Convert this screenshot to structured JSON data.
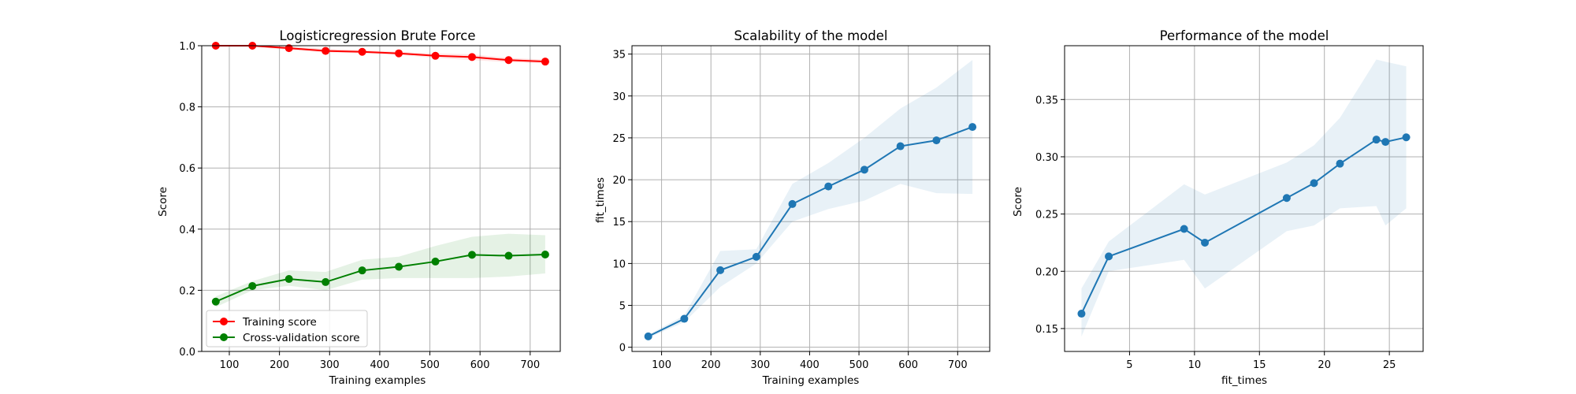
{
  "chart_data": [
    {
      "type": "line",
      "title": "Logisticregression Brute Force",
      "xlabel": "Training examples",
      "ylabel": "Score",
      "xlim": [
        45,
        760
      ],
      "ylim": [
        0.0,
        1.0
      ],
      "xticks": [
        100,
        200,
        300,
        400,
        500,
        600,
        700
      ],
      "yticks": [
        0.0,
        0.2,
        0.4,
        0.6,
        0.8,
        1.0
      ],
      "ytick_labels": [
        "0.0",
        "0.2",
        "0.4",
        "0.6",
        "0.8",
        "1.0"
      ],
      "grid": true,
      "legend": "lower-left",
      "x": [
        73,
        146,
        219,
        292,
        365,
        438,
        511,
        584,
        657,
        730
      ],
      "series": [
        {
          "name": "Training score",
          "color": "#ff0000",
          "values": [
            1.0,
            1.0,
            0.992,
            0.983,
            0.98,
            0.975,
            0.967,
            0.963,
            0.953,
            0.948
          ],
          "band_low": [
            0.998,
            0.997,
            0.986,
            0.978,
            0.975,
            0.97,
            0.96,
            0.953,
            0.946,
            0.942
          ],
          "band_high": [
            1.0,
            1.0,
            0.998,
            0.99,
            0.986,
            0.98,
            0.975,
            0.972,
            0.96,
            0.955
          ]
        },
        {
          "name": "Cross-validation score",
          "color": "#008000",
          "values": [
            0.163,
            0.214,
            0.237,
            0.227,
            0.265,
            0.277,
            0.294,
            0.316,
            0.313,
            0.317
          ],
          "band_low": [
            0.145,
            0.2,
            0.215,
            0.2,
            0.235,
            0.24,
            0.24,
            0.24,
            0.245,
            0.255
          ],
          "band_high": [
            0.18,
            0.23,
            0.265,
            0.26,
            0.3,
            0.31,
            0.345,
            0.375,
            0.385,
            0.38
          ]
        }
      ]
    },
    {
      "type": "line",
      "title": "Scalability of the model",
      "xlabel": "Training examples",
      "ylabel": "fit_times",
      "xlim": [
        40,
        765
      ],
      "ylim": [
        -0.5,
        36
      ],
      "xticks": [
        100,
        200,
        300,
        400,
        500,
        600,
        700
      ],
      "yticks": [
        0,
        5,
        10,
        15,
        20,
        25,
        30,
        35
      ],
      "grid": true,
      "x": [
        73,
        146,
        219,
        292,
        365,
        438,
        511,
        584,
        657,
        730
      ],
      "series": [
        {
          "name": "",
          "color": "#1f77b4",
          "values": [
            1.3,
            3.4,
            9.2,
            10.8,
            17.1,
            19.2,
            21.2,
            24.0,
            24.7,
            26.3
          ],
          "band_low": [
            1.1,
            3.0,
            7.2,
            10.0,
            15.0,
            16.5,
            17.5,
            19.5,
            18.4,
            18.3
          ],
          "band_high": [
            1.5,
            3.8,
            11.5,
            11.7,
            19.5,
            22.0,
            25.0,
            28.5,
            31.0,
            34.3
          ]
        }
      ]
    },
    {
      "type": "line",
      "title": "Performance of the model",
      "xlabel": "fit_times",
      "ylabel": "Score",
      "xlim": [
        0.0,
        27.6
      ],
      "ylim": [
        0.13,
        0.397
      ],
      "xticks": [
        5,
        10,
        15,
        20,
        25
      ],
      "yticks": [
        0.15,
        0.2,
        0.25,
        0.3,
        0.35
      ],
      "ytick_labels": [
        "0.15",
        "0.20",
        "0.25",
        "0.30",
        "0.35"
      ],
      "grid": true,
      "x": [
        1.3,
        3.4,
        9.2,
        10.8,
        17.1,
        19.2,
        21.2,
        24.0,
        24.7,
        26.3
      ],
      "series": [
        {
          "name": "",
          "color": "#1f77b4",
          "values": [
            0.163,
            0.213,
            0.237,
            0.225,
            0.264,
            0.277,
            0.294,
            0.315,
            0.313,
            0.317
          ],
          "band_low": [
            0.143,
            0.2,
            0.21,
            0.185,
            0.235,
            0.24,
            0.255,
            0.257,
            0.24,
            0.255
          ],
          "band_high": [
            0.185,
            0.226,
            0.276,
            0.267,
            0.295,
            0.31,
            0.334,
            0.385,
            0.383,
            0.379
          ]
        }
      ]
    }
  ]
}
